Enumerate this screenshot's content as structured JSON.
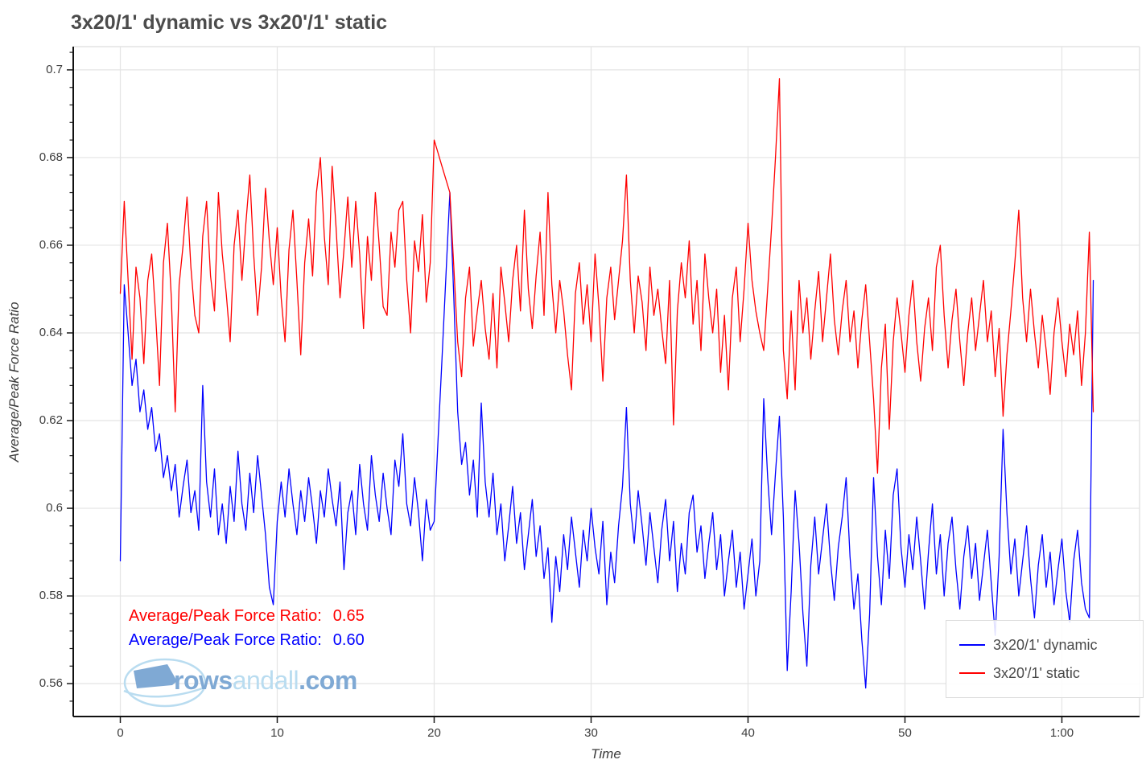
{
  "title": "3x20/1' dynamic vs 3x20'/1' static",
  "axes": {
    "x_label": "Time",
    "y_label": "Average/Peak Force Ratio",
    "x_range": [
      -3.0,
      64.95
    ],
    "y_range": [
      0.5525,
      0.7053
    ],
    "x_ticks": [
      {
        "value": 0,
        "label": "0"
      },
      {
        "value": 10,
        "label": "10"
      },
      {
        "value": 20,
        "label": "20"
      },
      {
        "value": 30,
        "label": "30"
      },
      {
        "value": 40,
        "label": "40"
      },
      {
        "value": 50,
        "label": "50"
      },
      {
        "value": 60,
        "label": "1:00"
      }
    ],
    "y_ticks": [
      {
        "value": 0.7,
        "label": "0.7"
      },
      {
        "value": 0.68,
        "label": "0.68"
      },
      {
        "value": 0.66,
        "label": "0.66"
      },
      {
        "value": 0.64,
        "label": "0.64"
      },
      {
        "value": 0.62,
        "label": "0.62"
      },
      {
        "value": 0.6,
        "label": "0.6"
      },
      {
        "value": 0.58,
        "label": "0.58"
      },
      {
        "value": 0.56,
        "label": "0.56"
      }
    ],
    "y_minor_start": 0.556,
    "y_minor_step": 0.004,
    "y_minor_count": 38
  },
  "annotations": [
    {
      "label": "Average/Peak Force Ratio:",
      "value": "0.65",
      "color": "#ff0000"
    },
    {
      "label": "Average/Peak Force Ratio:",
      "value": "0.60",
      "color": "#0000ff"
    }
  ],
  "legend": [
    {
      "label": "3x20/1' dynamic",
      "color": "#0000ff"
    },
    {
      "label": "3x20'/1' static",
      "color": "#ff0000"
    }
  ],
  "logo": {
    "part1": "rows",
    "part2": "andall",
    "part3": ".com"
  },
  "colors": {
    "dynamic_line": "#0000ff",
    "static_line": "#ff0000",
    "grid": "#e4e4e4",
    "axis": "#111111",
    "tick": "#1a1a1a",
    "title_text": "#4c4c4c",
    "logo_main": "#7fa9d4",
    "logo_light": "#b9dcf0"
  },
  "chart_data": {
    "type": "line",
    "title": "3x20/1' dynamic vs 3x20'/1' static",
    "xlabel": "Time",
    "ylabel": "Average/Peak Force Ratio",
    "x_unit": "minutes",
    "xlim": [
      -3.0,
      64.95
    ],
    "ylim": [
      0.5525,
      0.7053
    ],
    "grid": true,
    "legend_position": "lower right",
    "t_start": 0,
    "t_step": 0.25,
    "series": [
      {
        "id": "dynamic",
        "name": "3x20/1' dynamic",
        "color": "#0000ff",
        "average_peak_force_ratio": 0.6,
        "values": [
          0.588,
          0.651,
          0.64,
          0.628,
          0.634,
          0.622,
          0.627,
          0.618,
          0.623,
          0.613,
          0.617,
          0.607,
          0.612,
          0.604,
          0.61,
          0.598,
          0.605,
          0.611,
          0.599,
          0.604,
          0.595,
          0.628,
          0.606,
          0.598,
          0.609,
          0.594,
          0.601,
          0.592,
          0.605,
          0.597,
          0.613,
          0.601,
          0.595,
          0.608,
          0.599,
          0.612,
          0.603,
          0.594,
          0.582,
          0.578,
          0.597,
          0.606,
          0.598,
          0.609,
          0.601,
          0.594,
          0.604,
          0.597,
          0.607,
          0.6,
          0.592,
          0.604,
          0.598,
          0.609,
          0.602,
          0.596,
          0.606,
          0.586,
          0.599,
          0.604,
          0.594,
          0.61,
          0.601,
          0.595,
          0.612,
          0.603,
          0.597,
          0.608,
          0.6,
          0.594,
          0.611,
          0.605,
          0.617,
          0.601,
          0.596,
          0.607,
          0.599,
          0.588,
          0.602,
          0.595,
          0.597,
          0.616,
          0.634,
          0.653,
          0.672,
          0.648,
          0.622,
          0.61,
          0.615,
          0.603,
          0.611,
          0.598,
          0.624,
          0.606,
          0.598,
          0.608,
          0.594,
          0.601,
          0.588,
          0.596,
          0.605,
          0.592,
          0.599,
          0.586,
          0.594,
          0.602,
          0.589,
          0.596,
          0.584,
          0.591,
          0.574,
          0.589,
          0.581,
          0.594,
          0.586,
          0.598,
          0.59,
          0.582,
          0.595,
          0.588,
          0.6,
          0.591,
          0.585,
          0.597,
          0.578,
          0.59,
          0.583,
          0.596,
          0.605,
          0.623,
          0.601,
          0.592,
          0.604,
          0.596,
          0.587,
          0.599,
          0.591,
          0.583,
          0.595,
          0.602,
          0.588,
          0.597,
          0.581,
          0.592,
          0.585,
          0.599,
          0.603,
          0.59,
          0.596,
          0.584,
          0.592,
          0.599,
          0.586,
          0.594,
          0.58,
          0.588,
          0.595,
          0.582,
          0.59,
          0.577,
          0.585,
          0.593,
          0.58,
          0.588,
          0.625,
          0.607,
          0.594,
          0.608,
          0.621,
          0.598,
          0.563,
          0.581,
          0.604,
          0.592,
          0.576,
          0.564,
          0.587,
          0.598,
          0.585,
          0.593,
          0.601,
          0.588,
          0.579,
          0.591,
          0.598,
          0.607,
          0.589,
          0.577,
          0.585,
          0.57,
          0.559,
          0.576,
          0.607,
          0.589,
          0.578,
          0.595,
          0.584,
          0.603,
          0.609,
          0.591,
          0.582,
          0.594,
          0.586,
          0.598,
          0.588,
          0.577,
          0.59,
          0.601,
          0.585,
          0.594,
          0.58,
          0.592,
          0.598,
          0.586,
          0.577,
          0.589,
          0.596,
          0.584,
          0.592,
          0.579,
          0.587,
          0.595,
          0.583,
          0.571,
          0.589,
          0.618,
          0.599,
          0.585,
          0.593,
          0.58,
          0.588,
          0.596,
          0.584,
          0.575,
          0.587,
          0.594,
          0.582,
          0.59,
          0.578,
          0.586,
          0.593,
          0.581,
          0.574,
          0.588,
          0.595,
          0.583,
          0.577,
          0.575,
          0.652
        ]
      },
      {
        "id": "static",
        "name": "3x20'/1' static",
        "color": "#ff0000",
        "average_peak_force_ratio": 0.65,
        "values": [
          0.649,
          0.67,
          0.652,
          0.634,
          0.655,
          0.648,
          0.633,
          0.652,
          0.658,
          0.644,
          0.628,
          0.656,
          0.665,
          0.648,
          0.622,
          0.651,
          0.66,
          0.671,
          0.655,
          0.644,
          0.64,
          0.662,
          0.67,
          0.653,
          0.645,
          0.672,
          0.658,
          0.649,
          0.638,
          0.66,
          0.668,
          0.652,
          0.665,
          0.676,
          0.658,
          0.644,
          0.655,
          0.673,
          0.661,
          0.651,
          0.664,
          0.648,
          0.638,
          0.659,
          0.668,
          0.652,
          0.635,
          0.656,
          0.666,
          0.653,
          0.672,
          0.68,
          0.662,
          0.651,
          0.678,
          0.664,
          0.648,
          0.659,
          0.671,
          0.655,
          0.67,
          0.658,
          0.641,
          0.662,
          0.652,
          0.672,
          0.66,
          0.646,
          0.644,
          0.663,
          0.655,
          0.668,
          0.67,
          0.652,
          0.64,
          0.661,
          0.654,
          0.667,
          0.647,
          0.656,
          0.684,
          0.681,
          0.678,
          0.675,
          0.672,
          0.655,
          0.638,
          0.63,
          0.648,
          0.655,
          0.637,
          0.645,
          0.652,
          0.641,
          0.634,
          0.649,
          0.632,
          0.655,
          0.647,
          0.638,
          0.652,
          0.66,
          0.645,
          0.668,
          0.65,
          0.641,
          0.653,
          0.663,
          0.644,
          0.672,
          0.651,
          0.64,
          0.652,
          0.645,
          0.635,
          0.627,
          0.649,
          0.656,
          0.642,
          0.651,
          0.638,
          0.658,
          0.646,
          0.629,
          0.648,
          0.655,
          0.643,
          0.652,
          0.661,
          0.676,
          0.652,
          0.64,
          0.653,
          0.647,
          0.636,
          0.655,
          0.644,
          0.65,
          0.641,
          0.633,
          0.652,
          0.619,
          0.645,
          0.656,
          0.648,
          0.661,
          0.642,
          0.652,
          0.636,
          0.658,
          0.648,
          0.64,
          0.65,
          0.631,
          0.644,
          0.627,
          0.648,
          0.655,
          0.638,
          0.65,
          0.665,
          0.652,
          0.645,
          0.64,
          0.636,
          0.65,
          0.664,
          0.68,
          0.698,
          0.636,
          0.625,
          0.645,
          0.627,
          0.652,
          0.64,
          0.648,
          0.634,
          0.645,
          0.654,
          0.638,
          0.648,
          0.658,
          0.643,
          0.635,
          0.645,
          0.652,
          0.638,
          0.645,
          0.632,
          0.643,
          0.651,
          0.638,
          0.625,
          0.608,
          0.632,
          0.642,
          0.618,
          0.638,
          0.648,
          0.64,
          0.631,
          0.644,
          0.652,
          0.638,
          0.629,
          0.641,
          0.648,
          0.636,
          0.655,
          0.66,
          0.644,
          0.632,
          0.643,
          0.65,
          0.638,
          0.628,
          0.64,
          0.648,
          0.636,
          0.644,
          0.652,
          0.638,
          0.645,
          0.63,
          0.641,
          0.621,
          0.635,
          0.645,
          0.656,
          0.668,
          0.648,
          0.638,
          0.65,
          0.64,
          0.632,
          0.644,
          0.636,
          0.626,
          0.64,
          0.648,
          0.638,
          0.63,
          0.642,
          0.635,
          0.645,
          0.628,
          0.64,
          0.663,
          0.622
        ]
      }
    ]
  }
}
